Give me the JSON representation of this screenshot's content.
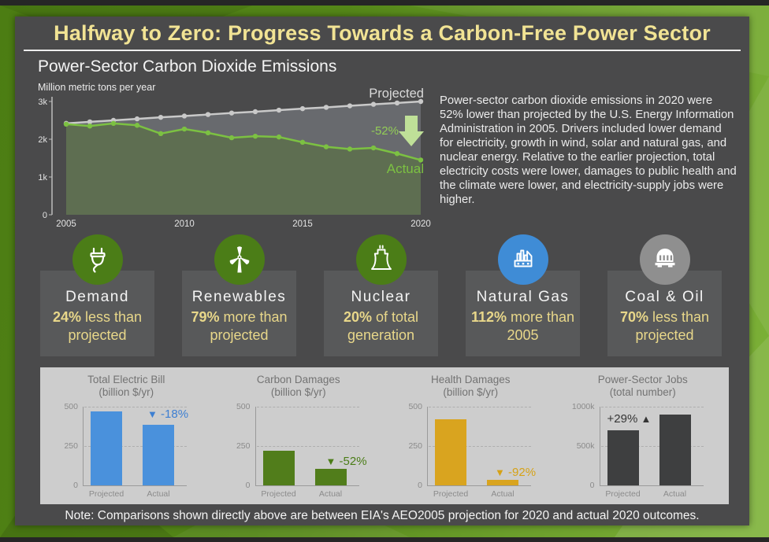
{
  "header": {
    "title": "Halfway to Zero: Progress Towards a Carbon-Free Power Sector",
    "subtitle": "Power-Sector Carbon Dioxide Emissions",
    "units_label": "Million metric tons per year"
  },
  "summary_text": "Power-sector carbon dioxide emissions in 2020 were 52% lower than projected by the U.S. Energy Information Administration in 2005. Drivers included lower demand for electricity, growth in wind, solar and natural gas, and nuclear energy. Relative to the earlier projection, total electricity costs were lower, damages to public health and the climate were lower, and electricity-supply jobs were higher.",
  "note": "Note: Comparisons shown directly above are between EIA's AEO2005 projection for 2020 and actual 2020 outcomes.",
  "colors": {
    "frame_green": "#5a8a1c",
    "card_bg": "#4a4a4b",
    "title_yellow": "#f1e394",
    "badge_box": "#58595a",
    "badge_yellow": "#e8d78a",
    "green_circle": "#4b7d17",
    "blue_circle": "#3f8cd6",
    "gray_circle": "#8f8f8f",
    "panel_bg": "#cdcdcd"
  },
  "chart_data": [
    {
      "type": "line",
      "title": "Power-Sector Carbon Dioxide Emissions",
      "ylabel": "Million metric tons per year",
      "x": [
        2005,
        2006,
        2007,
        2008,
        2009,
        2010,
        2011,
        2012,
        2013,
        2014,
        2015,
        2016,
        2017,
        2018,
        2019,
        2020
      ],
      "series": [
        {
          "name": "Projected",
          "color": "#c9c9c9",
          "values": [
            2420,
            2460,
            2500,
            2540,
            2580,
            2615,
            2655,
            2695,
            2730,
            2770,
            2810,
            2845,
            2885,
            2925,
            2960,
            3000
          ]
        },
        {
          "name": "Actual",
          "color": "#7cc142",
          "values": [
            2400,
            2350,
            2420,
            2370,
            2150,
            2270,
            2170,
            2040,
            2080,
            2060,
            1920,
            1800,
            1740,
            1770,
            1620,
            1450
          ]
        }
      ],
      "ylim": [
        0,
        3000
      ],
      "yticks": [
        {
          "v": 0,
          "label": "0"
        },
        {
          "v": 1000,
          "label": "1k"
        },
        {
          "v": 2000,
          "label": "2k"
        },
        {
          "v": 3000,
          "label": "3k"
        }
      ],
      "xticks": [
        2005,
        2010,
        2015,
        2020
      ],
      "annotation": {
        "change_label": "-52%",
        "label_color": "#93cd57",
        "arrow_color": "#bfe098"
      },
      "fills": {
        "between": "#686a6e",
        "under_actual": "#5e6e51"
      },
      "legend_position": "on-line-labels",
      "grid": false
    },
    {
      "type": "bar",
      "title": "Total Electric Bill",
      "subtitle": "(billion $/yr)",
      "categories": [
        "Projected",
        "Actual"
      ],
      "values": [
        470,
        385
      ],
      "ylim": [
        0,
        500
      ],
      "yticks": [
        "0",
        "250",
        "500"
      ],
      "change": "-18%",
      "direction": "down",
      "bar_color": "#4a91dc",
      "annotation_color": "#3d7fd2"
    },
    {
      "type": "bar",
      "title": "Carbon Damages",
      "subtitle": "(billion $/yr)",
      "categories": [
        "Projected",
        "Actual"
      ],
      "values": [
        220,
        105
      ],
      "ylim": [
        0,
        500
      ],
      "yticks": [
        "0",
        "250",
        "500"
      ],
      "change": "-52%",
      "direction": "down",
      "bar_color": "#517d1b",
      "annotation_color": "#4b7d17"
    },
    {
      "type": "bar",
      "title": "Health Damages",
      "subtitle": "(billion $/yr)",
      "categories": [
        "Projected",
        "Actual"
      ],
      "values": [
        420,
        34
      ],
      "ylim": [
        0,
        500
      ],
      "yticks": [
        "0",
        "250",
        "500"
      ],
      "change": "-92%",
      "direction": "down",
      "bar_color": "#d9a41f",
      "annotation_color": "#d6a216"
    },
    {
      "type": "bar",
      "title": "Power-Sector Jobs",
      "subtitle": "(total number)",
      "categories": [
        "Projected",
        "Actual"
      ],
      "values": [
        700,
        900
      ],
      "ylim": [
        0,
        1000
      ],
      "yticks": [
        "0",
        "500k",
        "1000k"
      ],
      "change": "+29%",
      "direction": "up",
      "bar_color": "#3e3f40",
      "annotation_color": "#353535"
    }
  ],
  "badges": [
    {
      "name": "Demand",
      "value_bold": "24%",
      "value_rest": "less than projected",
      "circle_color": "#4b7d17",
      "icon": "plug-icon"
    },
    {
      "name": "Renewables",
      "value_bold": "79%",
      "value_rest": "more than projected",
      "circle_color": "#4b7d17",
      "icon": "wind-turbine-icon"
    },
    {
      "name": "Nuclear",
      "value_bold": "20%",
      "value_rest": "of total generation",
      "circle_color": "#4b7d17",
      "icon": "cooling-tower-icon"
    },
    {
      "name": "Natural Gas",
      "value_bold": "112%",
      "value_rest": "more than 2005",
      "circle_color": "#3f8cd6",
      "icon": "factory-icon"
    },
    {
      "name": "Coal & Oil",
      "value_bold": "70%",
      "value_rest": "less than projected",
      "circle_color": "#8f8f8f",
      "icon": "coal-car-icon"
    }
  ]
}
